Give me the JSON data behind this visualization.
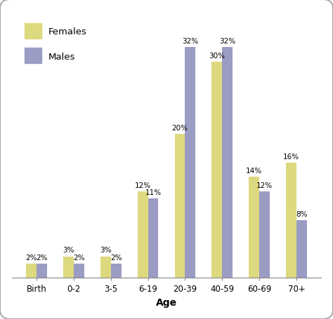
{
  "categories": [
    "Birth",
    "0-2",
    "3-5",
    "6-19",
    "20-39",
    "40-59",
    "60-69",
    "70+"
  ],
  "females": [
    2,
    3,
    3,
    12,
    20,
    30,
    14,
    16
  ],
  "males": [
    2,
    2,
    2,
    11,
    32,
    32,
    12,
    8
  ],
  "female_color": "#ddd97e",
  "male_color": "#9b9cc4",
  "xlabel": "Age",
  "legend_females": "Females",
  "legend_males": "Males",
  "bar_width": 0.28,
  "ylim": [
    0,
    37
  ],
  "background_color": "#ffffff",
  "border_color": "#aaaaaa",
  "label_fontsize": 7.5,
  "axis_label_fontsize": 10,
  "legend_fontsize": 9.5,
  "tick_fontsize": 8.5
}
